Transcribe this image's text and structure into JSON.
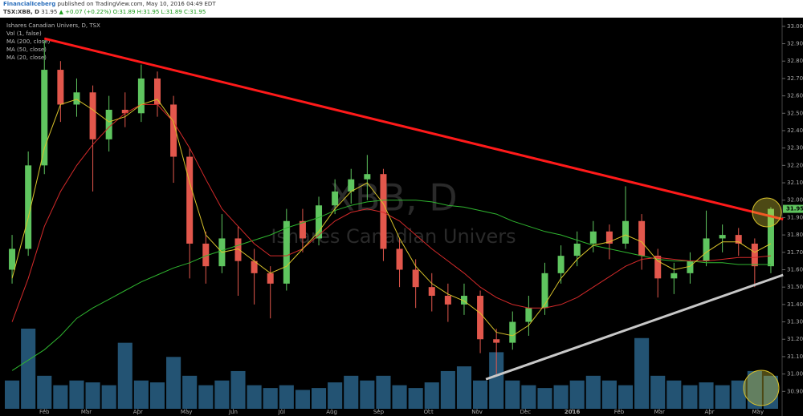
{
  "header": {
    "publisher": "FinancialIceberg",
    "published": "published on TradingView.com, May 10, 2016 04:49 EDT",
    "symbol": "TSX:XBB, D",
    "last": "31.95",
    "change": "▲ +0.07 (+0.22%)",
    "ohlc": "O:31.89 H:31.95 L:31.89 C:31.95"
  },
  "chart_data": {
    "type": "candlestick",
    "instrument": "Ishares Canadian Univers, D, TSX",
    "watermark": {
      "symbol": "XBB, D",
      "description": "Ishares Canadian Univers"
    },
    "categories": [
      null,
      null,
      null,
      null,
      null,
      null,
      null,
      null,
      null,
      null,
      null,
      null,
      null,
      null,
      null,
      null,
      null,
      null,
      null,
      null,
      null,
      null,
      null,
      null,
      null,
      null,
      null,
      null,
      null,
      null,
      null,
      null,
      null,
      null,
      null,
      null,
      null,
      null,
      null,
      null,
      null,
      null,
      null,
      null,
      null,
      null,
      null,
      null
    ],
    "open": [
      31.6,
      31.72,
      32.2,
      32.75,
      32.55,
      32.62,
      32.35,
      32.52,
      32.5,
      32.7,
      32.55,
      32.25,
      31.75,
      31.62,
      31.78,
      31.65,
      31.58,
      31.52,
      31.88,
      31.78,
      31.97,
      32.05,
      32.12,
      32.15,
      31.72,
      31.6,
      31.5,
      31.45,
      31.4,
      31.45,
      31.2,
      31.18,
      31.3,
      31.38,
      31.58,
      31.68,
      31.75,
      31.82,
      31.75,
      31.88,
      31.68,
      31.55,
      31.58,
      31.65,
      31.78,
      31.8,
      31.75,
      31.62
    ],
    "high": [
      31.8,
      32.28,
      32.92,
      32.8,
      32.7,
      32.66,
      32.6,
      32.62,
      32.78,
      32.74,
      32.6,
      32.3,
      31.82,
      31.92,
      31.85,
      31.72,
      31.62,
      31.95,
      31.95,
      32.02,
      32.12,
      32.18,
      32.26,
      32.18,
      31.78,
      31.66,
      31.58,
      31.52,
      31.52,
      31.48,
      31.26,
      31.36,
      31.45,
      31.64,
      31.74,
      31.82,
      31.88,
      31.86,
      32.08,
      31.92,
      31.72,
      31.64,
      31.7,
      31.94,
      31.86,
      31.84,
      31.78,
      31.96
    ],
    "low": [
      31.52,
      31.68,
      32.15,
      32.45,
      32.48,
      32.05,
      32.28,
      32.42,
      32.45,
      32.48,
      32.1,
      31.55,
      31.52,
      31.58,
      31.45,
      31.4,
      31.32,
      31.48,
      31.7,
      31.74,
      31.92,
      31.98,
      32.0,
      31.65,
      31.5,
      31.38,
      31.36,
      31.3,
      31.34,
      31.12,
      31.0,
      31.14,
      31.22,
      31.34,
      31.52,
      31.62,
      31.7,
      31.66,
      31.72,
      31.6,
      31.44,
      31.46,
      31.52,
      31.62,
      31.7,
      31.68,
      31.5,
      31.58
    ],
    "close": [
      31.72,
      32.2,
      32.75,
      32.55,
      32.62,
      32.35,
      32.52,
      32.5,
      32.7,
      32.55,
      32.25,
      31.75,
      31.62,
      31.78,
      31.65,
      31.58,
      31.52,
      31.88,
      31.78,
      31.97,
      32.05,
      32.12,
      32.15,
      31.72,
      31.6,
      31.5,
      31.45,
      31.4,
      31.45,
      31.2,
      31.18,
      31.3,
      31.38,
      31.58,
      31.68,
      31.75,
      31.82,
      31.75,
      31.88,
      31.68,
      31.55,
      31.58,
      31.65,
      31.78,
      31.8,
      31.75,
      31.62,
      31.95
    ],
    "up_color": "#5fc55f",
    "down_color": "#e2574c",
    "series": [
      {
        "name": "MA (200, close)",
        "color": "#2fb52f",
        "values": [
          31.02,
          31.08,
          31.14,
          31.22,
          31.32,
          31.38,
          31.43,
          31.48,
          31.53,
          31.57,
          31.61,
          31.64,
          31.68,
          31.71,
          31.74,
          31.77,
          31.8,
          31.84,
          31.87,
          31.9,
          31.94,
          31.97,
          31.99,
          32.0,
          32.0,
          32.0,
          31.99,
          31.97,
          31.96,
          31.94,
          31.92,
          31.88,
          31.85,
          31.82,
          31.8,
          31.77,
          31.74,
          31.72,
          31.7,
          31.68,
          31.66,
          31.65,
          31.65,
          31.64,
          31.64,
          31.63,
          31.63,
          31.63
        ]
      },
      {
        "name": "MA (50, close)",
        "color": "#d42a2a",
        "values": [
          31.3,
          31.55,
          31.85,
          32.05,
          32.2,
          32.32,
          32.42,
          32.5,
          32.55,
          32.55,
          32.45,
          32.3,
          32.12,
          31.95,
          31.85,
          31.75,
          31.68,
          31.68,
          31.72,
          31.8,
          31.88,
          31.93,
          31.95,
          31.93,
          31.88,
          31.8,
          31.72,
          31.65,
          31.58,
          31.5,
          31.44,
          31.4,
          31.38,
          31.38,
          31.4,
          31.44,
          31.5,
          31.56,
          31.62,
          31.66,
          31.67,
          31.66,
          31.65,
          31.65,
          31.66,
          31.67,
          31.67,
          31.68
        ]
      },
      {
        "name": "MA (20, close)",
        "color": "#d8c22a",
        "values": [
          31.55,
          31.9,
          32.3,
          32.55,
          32.58,
          32.52,
          32.45,
          32.48,
          32.55,
          32.58,
          32.45,
          32.1,
          31.8,
          31.7,
          31.72,
          31.65,
          31.58,
          31.62,
          31.72,
          31.82,
          31.95,
          32.05,
          32.1,
          31.98,
          31.78,
          31.62,
          31.52,
          31.46,
          31.42,
          31.35,
          31.24,
          31.22,
          31.28,
          31.4,
          31.55,
          31.66,
          31.74,
          31.76,
          31.8,
          31.76,
          31.65,
          31.6,
          31.62,
          31.7,
          31.76,
          31.76,
          31.7,
          31.75
        ]
      }
    ],
    "volume": {
      "name": "Vol (1, false)",
      "color": "#2f6f9a",
      "values": [
        30,
        85,
        35,
        25,
        30,
        28,
        25,
        70,
        30,
        28,
        55,
        35,
        25,
        30,
        40,
        25,
        22,
        25,
        20,
        22,
        28,
        35,
        30,
        35,
        25,
        22,
        28,
        40,
        45,
        30,
        60,
        30,
        25,
        22,
        25,
        30,
        35,
        30,
        25,
        75,
        35,
        30,
        25,
        28,
        25,
        30,
        40,
        35
      ]
    },
    "trendlines": [
      {
        "color": "#ff1a1a",
        "x": [
          2.0,
          47.76
        ],
        "y": [
          32.93,
          31.89
        ]
      },
      {
        "color": "#c8c8c8",
        "x": [
          29.35,
          47.76
        ],
        "y": [
          30.97,
          31.57
        ]
      }
    ],
    "last_price": 31.95,
    "ylim": [
      30.8,
      33.05
    ],
    "yticks": [
      {
        "value": 30.9,
        "label": "30.90"
      },
      {
        "value": 31.0,
        "label": "31.00"
      },
      {
        "value": 31.1,
        "label": "31.10"
      },
      {
        "value": 31.2,
        "label": "31.20"
      },
      {
        "value": 31.3,
        "label": "31.30"
      },
      {
        "value": 31.4,
        "label": "31.40"
      },
      {
        "value": 31.5,
        "label": "31.50"
      },
      {
        "value": 31.6,
        "label": "31.60"
      },
      {
        "value": 31.7,
        "label": "31.70"
      },
      {
        "value": 31.8,
        "label": "31.80"
      },
      {
        "value": 31.9,
        "label": "31.90"
      },
      {
        "value": 32.0,
        "label": "32.00"
      },
      {
        "value": 32.1,
        "label": "32.10"
      },
      {
        "value": 32.2,
        "label": "32.20"
      },
      {
        "value": 32.3,
        "label": "32.30"
      },
      {
        "value": 32.4,
        "label": "32.40"
      },
      {
        "value": 32.5,
        "label": "32.50"
      },
      {
        "value": 32.6,
        "label": "32.60"
      },
      {
        "value": 32.7,
        "label": "32.70"
      },
      {
        "value": 32.8,
        "label": "32.80"
      },
      {
        "value": 32.9,
        "label": "32.90"
      },
      {
        "value": 33.0,
        "label": "33.00"
      }
    ],
    "xticks": [
      {
        "value": 2.0,
        "label": "Feb"
      },
      {
        "value": 4.6,
        "label": "Mar"
      },
      {
        "value": 7.8,
        "label": "Apr"
      },
      {
        "value": 10.8,
        "label": "May"
      },
      {
        "value": 13.7,
        "label": "Jun"
      },
      {
        "value": 16.7,
        "label": "Jul"
      },
      {
        "value": 19.8,
        "label": "Aug"
      },
      {
        "value": 22.7,
        "label": "Sep"
      },
      {
        "value": 25.8,
        "label": "Oct"
      },
      {
        "value": 28.8,
        "label": "Nov"
      },
      {
        "value": 31.8,
        "label": "Dec"
      },
      {
        "value": 34.7,
        "label": "2016"
      },
      {
        "value": 37.6,
        "label": "Feb"
      },
      {
        "value": 40.1,
        "label": "Mar"
      },
      {
        "value": 43.2,
        "label": "Apr"
      },
      {
        "value": 46.2,
        "label": "May"
      }
    ],
    "grid": false
  }
}
